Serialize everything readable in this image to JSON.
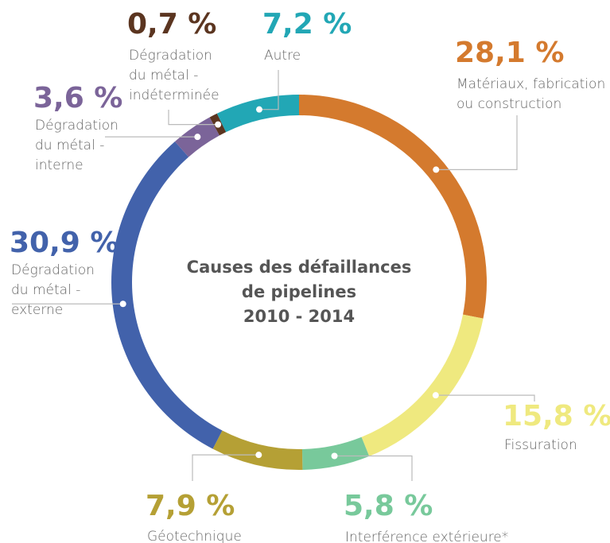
{
  "chart_data": {
    "type": "donut",
    "title": [
      "Causes des défaillances",
      "de pipelines",
      "2010 - 2014"
    ],
    "categories": [
      [
        "Matériaux, fabrication",
        "ou construction"
      ],
      [
        "Fissuration"
      ],
      [
        "Interférence extérieure*"
      ],
      [
        "Géotechnique"
      ],
      [
        "Dégradation",
        "du métal -",
        "externe"
      ],
      [
        "Dégradation",
        "du métal -",
        "interne"
      ],
      [
        "Dégradation",
        "du métal -",
        "indéterminée"
      ],
      [
        "Autre"
      ]
    ],
    "values": [
      28.1,
      15.8,
      5.8,
      7.9,
      30.9,
      3.6,
      0.7,
      7.2
    ],
    "value_labels": [
      "28,1 %",
      "15,8 %",
      "5,8 %",
      "7,9 %",
      "30,9 %",
      "3,6 %",
      "0,7 %",
      "7,2 %"
    ],
    "colors": [
      "#d47a2e",
      "#efe97f",
      "#78c99b",
      "#b5a035",
      "#4262ab",
      "#7b6499",
      "#5b3520",
      "#22a7b5"
    ]
  }
}
